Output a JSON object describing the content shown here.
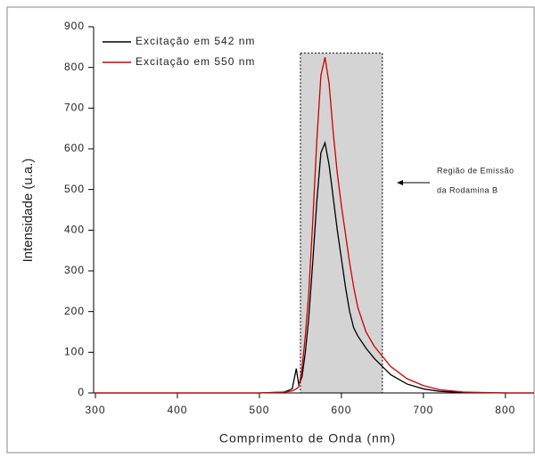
{
  "chart_data": {
    "type": "line",
    "x_label": "Comprimento de Onda (nm)",
    "y_label": "Intensidade (u.a.)",
    "x": [
      300,
      400,
      500,
      530,
      540,
      545,
      548,
      552,
      556,
      560,
      565,
      570,
      575,
      580,
      585,
      590,
      595,
      600,
      605,
      610,
      615,
      620,
      630,
      640,
      650,
      660,
      680,
      700,
      720,
      750,
      800,
      835
    ],
    "series": [
      {
        "name": "Excitação em 542 nm",
        "color": "#000000",
        "values": [
          0,
          0,
          0,
          2,
          10,
          60,
          20,
          40,
          100,
          180,
          320,
          470,
          590,
          615,
          560,
          480,
          400,
          330,
          260,
          200,
          160,
          140,
          110,
          85,
          65,
          45,
          22,
          10,
          4,
          1,
          0,
          0
        ]
      },
      {
        "name": "Excitação em 550 nm",
        "color": "#cc0000",
        "values": [
          0,
          0,
          0,
          2,
          5,
          10,
          15,
          60,
          140,
          240,
          420,
          620,
          780,
          825,
          760,
          640,
          540,
          460,
          390,
          320,
          260,
          210,
          150,
          115,
          90,
          65,
          35,
          18,
          8,
          2,
          0,
          0
        ]
      }
    ],
    "xlim": [
      300,
      835
    ],
    "ylim": [
      0,
      900
    ],
    "xticks": [
      300,
      400,
      500,
      600,
      700,
      800
    ],
    "yticks": [
      0,
      100,
      200,
      300,
      400,
      500,
      600,
      700,
      800,
      900
    ],
    "region": {
      "x": [
        550,
        650
      ],
      "y": [
        0,
        835
      ],
      "color": "#d4d4d4"
    },
    "annotation": [
      "Região de Emissão",
      "da Rodamina B"
    ]
  }
}
